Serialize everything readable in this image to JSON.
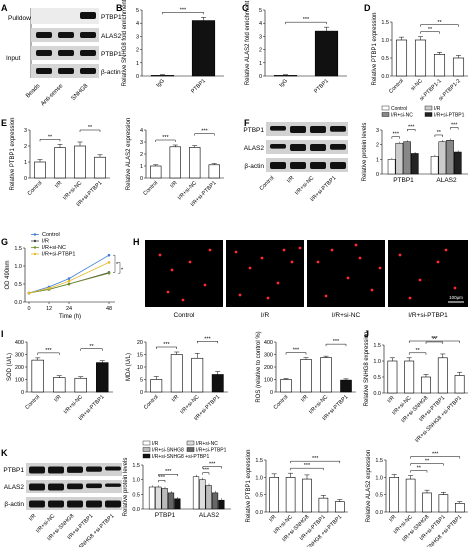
{
  "panels": {
    "A": {
      "letter": "A",
      "pulldown": "Pulldown",
      "input": "Input",
      "rows": [
        "PTBP1",
        "ALAS2",
        "PTBP1",
        "β-actin"
      ],
      "lanes": [
        "Beads",
        "Anti-sense",
        "SNHG8"
      ]
    },
    "F": {
      "letter": "F",
      "rows": [
        "PTBP1",
        "ALAS2",
        "β-actin"
      ]
    },
    "H": {
      "letter": "H",
      "labels": [
        "Control",
        "I/R",
        "I/R+si-NC",
        "I/R+si-PTBP1"
      ],
      "scale": "100μm"
    },
    "K": {
      "letter": "K",
      "rows": [
        "PTBP1",
        "ALAS2",
        "β-actin"
      ],
      "lanes": [
        "I/R",
        "I/R+si-NC",
        "I/R+si-SNHG8",
        "I/R+si-PTBP1",
        "I/R+si-SNHG8 +si-PTBP1"
      ]
    }
  },
  "chart_data": [
    {
      "id": "B",
      "letter": "B",
      "type": "bar",
      "categories": [
        "IgG",
        "PTBP1"
      ],
      "values": [
        0.05,
        4.2
      ],
      "errors": [
        0.05,
        0.25
      ],
      "ylabel": "Relative SNHG8 fold enrichment",
      "ylim": [
        0,
        5
      ],
      "yticks": [
        "0",
        "1",
        "2",
        "3",
        "4",
        "5"
      ],
      "fills": [
        "#ffffff",
        "#111111"
      ],
      "sig": [
        {
          "from": 0,
          "to": 1,
          "label": "***"
        }
      ]
    },
    {
      "id": "C",
      "letter": "C",
      "type": "bar",
      "categories": [
        "IgG",
        "PTBP1"
      ],
      "values": [
        0.05,
        3.4
      ],
      "errors": [
        0.05,
        0.3
      ],
      "ylabel": "Relative ALAS2 fold enrichment",
      "ylim": [
        0,
        5
      ],
      "yticks": [
        "0",
        "1",
        "2",
        "3",
        "4",
        "5"
      ],
      "fills": [
        "#ffffff",
        "#111111"
      ],
      "sig": [
        {
          "from": 0,
          "to": 1,
          "label": "***"
        }
      ]
    },
    {
      "id": "D",
      "letter": "D",
      "type": "bar",
      "categories": [
        "Control",
        "si-NC",
        "si-PTBP1-1",
        "si-PTBP1-2"
      ],
      "values": [
        1.0,
        1.0,
        0.6,
        0.5
      ],
      "errors": [
        0.08,
        0.09,
        0.06,
        0.07
      ],
      "ylabel": "Relative PTBP1 expression",
      "ylim": [
        0,
        1.5
      ],
      "yticks": [
        "0.0",
        "0.5",
        "1.0",
        "1.5"
      ],
      "fills": [
        "#ffffff",
        "#ffffff",
        "#ffffff",
        "#ffffff"
      ],
      "sig": [
        {
          "from": 1,
          "to": 2,
          "label": "**"
        },
        {
          "from": 1,
          "to": 3,
          "label": "**"
        }
      ]
    },
    {
      "id": "E1",
      "letter": "E",
      "type": "bar",
      "categories": [
        "Control",
        "I/R",
        "I/R+si-NC",
        "I/R+si-PTBP1"
      ],
      "values": [
        1.0,
        1.9,
        2.0,
        1.3
      ],
      "errors": [
        0.15,
        0.2,
        0.25,
        0.15
      ],
      "ylabel": "Relative PTBP1 expression",
      "ylim": [
        0,
        3
      ],
      "yticks": [
        "0",
        "1",
        "2",
        "3"
      ],
      "fills": [
        "#ffffff",
        "#ffffff",
        "#ffffff",
        "#ffffff"
      ],
      "sig": [
        {
          "from": 0,
          "to": 1,
          "label": "**"
        },
        {
          "from": 2,
          "to": 3,
          "label": "**"
        }
      ]
    },
    {
      "id": "E2",
      "letter": "",
      "type": "bar",
      "categories": [
        "Control",
        "I/R",
        "I/R+si-NC",
        "I/R+si-PTBP1"
      ],
      "values": [
        1.0,
        2.6,
        2.55,
        1.1
      ],
      "errors": [
        0.1,
        0.15,
        0.15,
        0.1
      ],
      "ylabel": "Relative ALAS2 expression",
      "ylim": [
        0,
        4
      ],
      "yticks": [
        "0",
        "1",
        "2",
        "3",
        "4"
      ],
      "fills": [
        "#ffffff",
        "#ffffff",
        "#ffffff",
        "#ffffff"
      ],
      "sig": [
        {
          "from": 0,
          "to": 1,
          "label": "***"
        },
        {
          "from": 2,
          "to": 3,
          "label": "***"
        }
      ]
    },
    {
      "id": "F",
      "letter": "",
      "type": "grouped-bar",
      "categories": [
        "PTBP1",
        "ALAS2"
      ],
      "series": [
        {
          "name": "Control",
          "values": [
            1.0,
            1.2
          ],
          "fill": "#ffffff"
        },
        {
          "name": "I/R",
          "values": [
            2.1,
            2.2
          ],
          "fill": "#cccccc"
        },
        {
          "name": "I/R+si-NC",
          "values": [
            2.2,
            2.3
          ],
          "fill": "#888888"
        },
        {
          "name": "I/R+si-PTBP1",
          "values": [
            1.4,
            1.5
          ],
          "fill": "#222222"
        }
      ],
      "errors": [
        0.1,
        0.12
      ],
      "ylabel": "Relative protein levels",
      "ylim": [
        0,
        3
      ],
      "yticks": [
        "0",
        "1",
        "2",
        "3"
      ],
      "sig": [
        {
          "g": 0,
          "from": 0,
          "to": 1,
          "label": "***"
        },
        {
          "g": 0,
          "from": 2,
          "to": 3,
          "label": "***"
        },
        {
          "g": 1,
          "from": 0,
          "to": 1,
          "label": "**"
        },
        {
          "g": 1,
          "from": 2,
          "to": 3,
          "label": "***"
        }
      ]
    },
    {
      "id": "G",
      "letter": "G",
      "type": "line",
      "x": [
        0,
        12,
        24,
        48
      ],
      "xticks": [
        "0",
        "12",
        "24",
        "48"
      ],
      "series": [
        {
          "name": "Control",
          "values": [
            0.25,
            0.42,
            0.65,
            1.3
          ],
          "color": "#3b7dd8"
        },
        {
          "name": "I/R",
          "values": [
            0.25,
            0.35,
            0.5,
            0.82
          ],
          "color": "#444444"
        },
        {
          "name": "I/R+si-NC",
          "values": [
            0.25,
            0.35,
            0.5,
            0.8
          ],
          "color": "#6f8f2a"
        },
        {
          "name": "I/R+si-PTBP1",
          "values": [
            0.25,
            0.38,
            0.58,
            1.1
          ],
          "color": "#e8b82a"
        }
      ],
      "xlabel": "Time (h)",
      "ylabel": "OD 490nm",
      "ylim": [
        0,
        1.5
      ],
      "yticks": [
        "0.0",
        "0.5",
        "1.0",
        "1.5"
      ],
      "sig": [
        "*",
        "*"
      ]
    },
    {
      "id": "I1",
      "letter": "I",
      "type": "bar",
      "categories": [
        "Control",
        "I/R",
        "I/R+si-NC",
        "I/R+si-PTBP1"
      ],
      "values": [
        255,
        115,
        110,
        235
      ],
      "errors": [
        18,
        15,
        12,
        15
      ],
      "ylabel": "SOD (U/L)",
      "ylim": [
        0,
        400
      ],
      "yticks": [
        "0",
        "100",
        "200",
        "300",
        "400"
      ],
      "fills": [
        "#ffffff",
        "#ffffff",
        "#ffffff",
        "#111111"
      ],
      "sig": [
        {
          "from": 0,
          "to": 1,
          "label": "***"
        },
        {
          "from": 2,
          "to": 3,
          "label": "**"
        }
      ]
    },
    {
      "id": "I2",
      "letter": "",
      "type": "bar",
      "categories": [
        "Control",
        "I/R",
        "I/R+si-NC",
        "I/R+si-PTBP1"
      ],
      "values": [
        5,
        15,
        13.5,
        7
      ],
      "errors": [
        1.2,
        1.0,
        2.0,
        1.2
      ],
      "ylabel": "MDA (U/L)",
      "ylim": [
        0,
        20
      ],
      "yticks": [
        "0",
        "5",
        "10",
        "15",
        "20"
      ],
      "fills": [
        "#ffffff",
        "#ffffff",
        "#ffffff",
        "#111111"
      ],
      "sig": [
        {
          "from": 0,
          "to": 1,
          "label": "***"
        },
        {
          "from": 2,
          "to": 3,
          "label": "***"
        }
      ]
    },
    {
      "id": "I3",
      "letter": "",
      "type": "bar",
      "categories": [
        "Control",
        "I/R",
        "I/R+si-NC",
        "I/R+si-PTBP1"
      ],
      "values": [
        100,
        260,
        275,
        95
      ],
      "errors": [
        8,
        15,
        12,
        10
      ],
      "ylabel": "ROS (relative to control %)",
      "ylim": [
        0,
        400
      ],
      "yticks": [
        "0",
        "100",
        "200",
        "300",
        "400"
      ],
      "fills": [
        "#ffffff",
        "#ffffff",
        "#ffffff",
        "#111111"
      ],
      "sig": [
        {
          "from": 0,
          "to": 1,
          "label": "***"
        },
        {
          "from": 2,
          "to": 3,
          "label": "***"
        }
      ]
    },
    {
      "id": "J",
      "letter": "J",
      "type": "bar",
      "categories": [
        "I/R",
        "I/R+si-NC",
        "I/R+si-SNHG8",
        "I/R+si-PTBP1",
        "I/R+si-SNHG8 +si-PTBP1"
      ],
      "values": [
        1.0,
        1.0,
        0.5,
        1.1,
        0.55
      ],
      "errors": [
        0.1,
        0.1,
        0.08,
        0.12,
        0.1
      ],
      "ylabel": "Relative SNHG8 expression",
      "ylim": [
        0,
        1.5
      ],
      "yticks": [
        "0.0",
        "0.5",
        "1.0",
        "1.5"
      ],
      "fills": [
        "#ffffff",
        "#ffffff",
        "#ffffff",
        "#ffffff",
        "#ffffff"
      ],
      "sig": [
        {
          "from": 1,
          "to": 2,
          "label": "**"
        },
        {
          "from": 2,
          "to": 3,
          "label": "**"
        },
        {
          "from": 1,
          "to": 4,
          "label": "***"
        }
      ]
    },
    {
      "id": "K1",
      "letter": "",
      "type": "grouped-bar",
      "categories": [
        "PTBP1",
        "ALAS2"
      ],
      "series": [
        {
          "name": "I/R",
          "values": [
            0.75,
            1.1
          ],
          "fill": "#ffffff"
        },
        {
          "name": "I/R+si-NC",
          "values": [
            0.75,
            1.0
          ],
          "fill": "#dddddd"
        },
        {
          "name": "I/R+si-SNHG8",
          "values": [
            0.7,
            0.8
          ],
          "fill": "#bbbbbb"
        },
        {
          "name": "I/R+si-PTBP1",
          "values": [
            0.55,
            0.55
          ],
          "fill": "#666666"
        },
        {
          "name": "I/R+si-SNHG8 +si-PTBP1",
          "values": [
            0.35,
            0.3
          ],
          "fill": "#111111"
        }
      ],
      "errors": [
        0.06,
        0.07
      ],
      "ylabel": "Relative protein levels",
      "ylim": [
        0,
        1.5
      ],
      "yticks": [
        "0.0",
        "0.5",
        "1.0",
        "1.5"
      ],
      "sig": [
        {
          "g": 0,
          "from": 1,
          "to": 2,
          "label": "***"
        },
        {
          "g": 0,
          "from": 1,
          "to": 4,
          "label": "***"
        },
        {
          "g": 1,
          "from": 1,
          "to": 2,
          "label": "***"
        },
        {
          "g": 1,
          "from": 1,
          "to": 4,
          "label": "***"
        }
      ]
    },
    {
      "id": "K2",
      "letter": "",
      "type": "bar",
      "categories": [
        "I/R",
        "I/R+si-NC",
        "I/R+si-SNHG8",
        "I/R+si-PTBP1",
        "I/R+si-SNHG8 +si-PTBP1"
      ],
      "values": [
        1.0,
        1.0,
        0.95,
        0.4,
        0.3
      ],
      "errors": [
        0.1,
        0.12,
        0.12,
        0.08,
        0.06
      ],
      "ylabel": "Relative PTBP1 expression",
      "ylim": [
        0,
        1.5
      ],
      "yticks": [
        "0.0",
        "0.5",
        "1.0",
        "1.5"
      ],
      "fills": [
        "#ffffff",
        "#ffffff",
        "#ffffff",
        "#ffffff",
        "#ffffff"
      ],
      "sig": [
        {
          "from": 1,
          "to": 3,
          "label": "***"
        },
        {
          "from": 1,
          "to": 4,
          "label": "***"
        }
      ]
    },
    {
      "id": "K3",
      "letter": "",
      "type": "bar",
      "categories": [
        "I/R",
        "I/R+si-NC",
        "I/R+si-SNHG8",
        "I/R+si-PTBP1",
        "I/R+si-SNHG8 +si-PTBP1"
      ],
      "values": [
        1.0,
        0.95,
        0.55,
        0.5,
        0.25
      ],
      "errors": [
        0.08,
        0.1,
        0.08,
        0.07,
        0.05
      ],
      "ylabel": "Relative ALAS2 expression",
      "ylim": [
        0,
        1.5
      ],
      "yticks": [
        "0.0",
        "0.5",
        "1.0",
        "1.5"
      ],
      "fills": [
        "#ffffff",
        "#ffffff",
        "#ffffff",
        "#ffffff",
        "#ffffff"
      ],
      "sig": [
        {
          "from": 1,
          "to": 2,
          "label": "**"
        },
        {
          "from": 1,
          "to": 3,
          "label": "**"
        },
        {
          "from": 1,
          "to": 4,
          "label": "***"
        }
      ]
    }
  ]
}
